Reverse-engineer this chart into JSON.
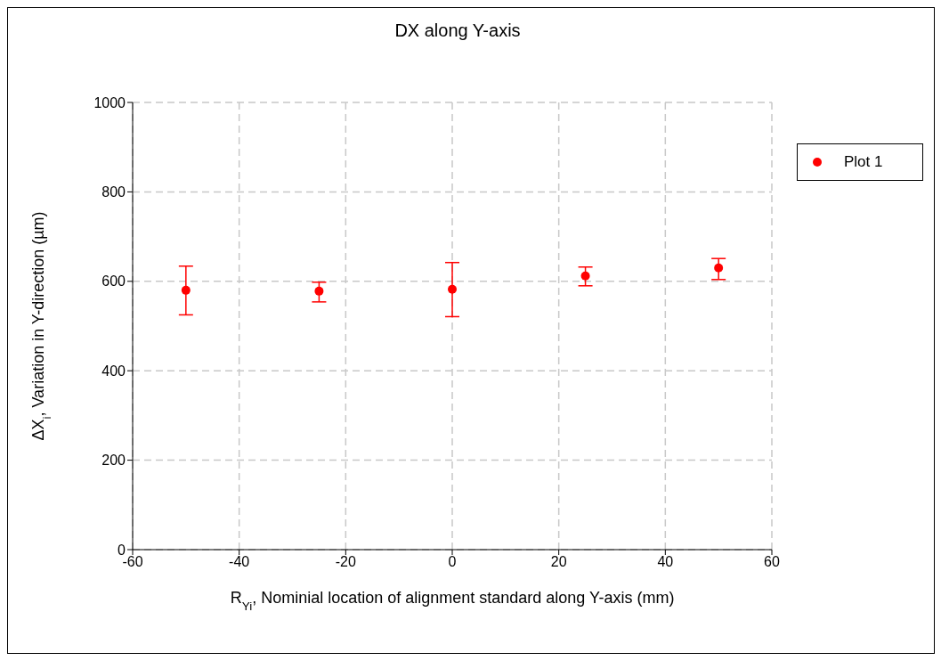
{
  "chart_data": {
    "type": "scatter",
    "title": "DX along Y-axis",
    "xlabel": "R$_{Yi}$, Nominial location of alignment standard along Y-axis (mm)",
    "ylabel": "ΔX$_{i}$, Variation in Y-direction (µm)",
    "x": [
      -50,
      -25,
      0,
      25,
      50
    ],
    "series": [
      {
        "name": "Plot 1",
        "color": "#ff0000",
        "values": [
          580,
          578,
          582,
          612,
          630
        ],
        "errors": [
          [
            525,
            634
          ],
          [
            554,
            598
          ],
          [
            521,
            642
          ],
          [
            590,
            632
          ],
          [
            604,
            651
          ]
        ]
      }
    ],
    "xlim": [
      -60,
      60
    ],
    "xticks": [
      -60,
      -40,
      -20,
      0,
      20,
      40,
      60
    ],
    "ylim": [
      0,
      1000
    ],
    "yticks": [
      0,
      200,
      400,
      600,
      800,
      1000
    ],
    "grid": true,
    "legend": "top right",
    "marker": "circle"
  }
}
